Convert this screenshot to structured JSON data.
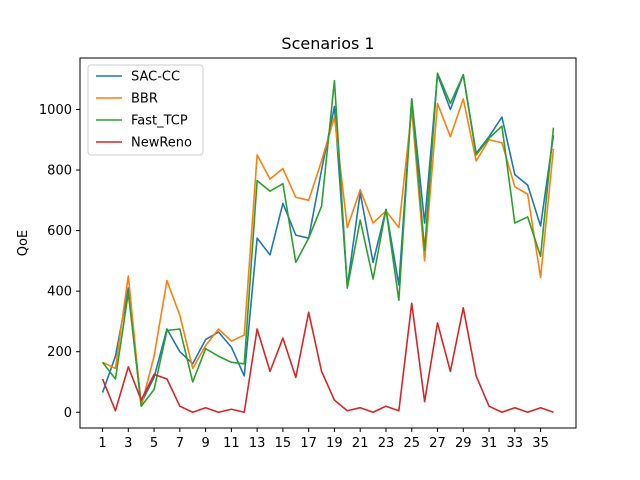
{
  "chart_data": {
    "type": "line",
    "title": "Scenarios 1",
    "xlabel": "",
    "ylabel": "QoE",
    "x": [
      1,
      2,
      3,
      4,
      5,
      6,
      7,
      8,
      9,
      10,
      11,
      12,
      13,
      14,
      15,
      16,
      17,
      18,
      19,
      20,
      21,
      22,
      23,
      24,
      25,
      26,
      27,
      28,
      29,
      30,
      31,
      32,
      33,
      34,
      35,
      36
    ],
    "xticks": [
      1,
      3,
      5,
      7,
      9,
      11,
      13,
      15,
      17,
      19,
      21,
      23,
      25,
      27,
      29,
      31,
      33,
      35
    ],
    "yticks": [
      0,
      200,
      400,
      600,
      800,
      1000
    ],
    "xlim": [
      -0.75,
      37.75
    ],
    "ylim": [
      -52,
      1170
    ],
    "grid": false,
    "legend_position": "upper-left",
    "series": [
      {
        "name": "SAC-CC",
        "color": "#1f77b4",
        "values": [
          65,
          185,
          410,
          30,
          115,
          275,
          200,
          160,
          240,
          265,
          215,
          120,
          575,
          520,
          690,
          585,
          575,
          800,
          1010,
          415,
          725,
          495,
          670,
          420,
          1035,
          625,
          1115,
          1000,
          1115,
          855,
          910,
          975,
          785,
          750,
          615,
          915
        ]
      },
      {
        "name": "BBR",
        "color": "#ff7f0e",
        "values": [
          165,
          145,
          450,
          20,
          185,
          435,
          320,
          145,
          220,
          275,
          235,
          255,
          850,
          770,
          805,
          710,
          700,
          830,
          975,
          610,
          735,
          625,
          665,
          610,
          1000,
          500,
          1020,
          910,
          1035,
          830,
          900,
          890,
          745,
          720,
          445,
          870
        ]
      },
      {
        "name": "Fast_TCP",
        "color": "#2ca02c",
        "values": [
          165,
          110,
          395,
          20,
          75,
          270,
          275,
          100,
          210,
          185,
          165,
          160,
          765,
          730,
          755,
          495,
          575,
          680,
          1095,
          410,
          635,
          440,
          670,
          370,
          1035,
          535,
          1120,
          1020,
          1115,
          850,
          905,
          945,
          625,
          645,
          515,
          940
        ]
      },
      {
        "name": "NewReno",
        "color": "#d62728",
        "values": [
          110,
          5,
          150,
          40,
          125,
          110,
          20,
          0,
          15,
          0,
          10,
          0,
          275,
          135,
          245,
          115,
          330,
          135,
          40,
          5,
          15,
          0,
          20,
          5,
          360,
          35,
          295,
          135,
          345,
          120,
          20,
          0,
          15,
          0,
          15,
          0
        ]
      }
    ]
  }
}
